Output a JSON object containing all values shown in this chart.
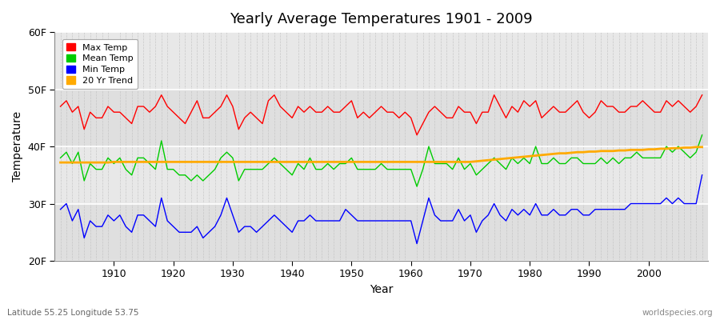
{
  "title": "Yearly Average Temperatures 1901 - 2009",
  "xlabel": "Year",
  "ylabel": "Temperature",
  "lat_label": "Latitude 55.25 Longitude 53.75",
  "source_label": "worldspecies.org",
  "start_year": 1901,
  "end_year": 2009,
  "ylim_min": 20,
  "ylim_max": 60,
  "yticks": [
    20,
    30,
    40,
    50,
    60
  ],
  "ytick_labels": [
    "20F",
    "30F",
    "40F",
    "50F",
    "60F"
  ],
  "xticks": [
    1910,
    1920,
    1930,
    1940,
    1950,
    1960,
    1970,
    1980,
    1990,
    2000
  ],
  "colors": {
    "max_temp": "#ff0000",
    "mean_temp": "#00cc00",
    "min_temp": "#0000ff",
    "trend": "#ffaa00",
    "fig_bg": "#ffffff",
    "plot_bg": "#e8e8e8",
    "band_light": "#e0e0e0",
    "band_dark": "#d0d0d0",
    "grid": "#ffffff"
  },
  "legend": [
    {
      "label": "Max Temp",
      "color": "#ff0000"
    },
    {
      "label": "Mean Temp",
      "color": "#00cc00"
    },
    {
      "label": "Min Temp",
      "color": "#0000ff"
    },
    {
      "label": "20 Yr Trend",
      "color": "#ffaa00"
    }
  ],
  "max_temp": [
    47,
    48,
    46,
    47,
    43,
    46,
    45,
    45,
    47,
    46,
    46,
    45,
    44,
    47,
    47,
    46,
    47,
    49,
    47,
    46,
    45,
    44,
    46,
    48,
    45,
    45,
    46,
    47,
    49,
    47,
    43,
    45,
    46,
    45,
    44,
    48,
    49,
    47,
    46,
    45,
    47,
    46,
    47,
    46,
    46,
    47,
    46,
    46,
    47,
    48,
    45,
    46,
    45,
    46,
    47,
    46,
    46,
    45,
    46,
    45,
    42,
    44,
    46,
    47,
    46,
    45,
    45,
    47,
    46,
    46,
    44,
    46,
    46,
    49,
    47,
    45,
    47,
    46,
    48,
    47,
    48,
    45,
    46,
    47,
    46,
    46,
    47,
    48,
    46,
    45,
    46,
    48,
    47,
    47,
    46,
    46,
    47,
    47,
    48,
    47,
    46,
    46,
    48,
    47,
    48,
    47,
    46,
    47,
    49
  ],
  "mean_temp": [
    38,
    39,
    37,
    39,
    34,
    37,
    36,
    36,
    38,
    37,
    38,
    36,
    35,
    38,
    38,
    37,
    36,
    41,
    36,
    36,
    35,
    35,
    34,
    35,
    34,
    35,
    36,
    38,
    39,
    38,
    34,
    36,
    36,
    36,
    36,
    37,
    38,
    37,
    36,
    35,
    37,
    36,
    38,
    36,
    36,
    37,
    36,
    37,
    37,
    38,
    36,
    36,
    36,
    36,
    37,
    36,
    36,
    36,
    36,
    36,
    33,
    36,
    40,
    37,
    37,
    37,
    36,
    38,
    36,
    37,
    35,
    36,
    37,
    38,
    37,
    36,
    38,
    37,
    38,
    37,
    40,
    37,
    37,
    38,
    37,
    37,
    38,
    38,
    37,
    37,
    37,
    38,
    37,
    38,
    37,
    38,
    38,
    39,
    38,
    38,
    38,
    38,
    40,
    39,
    40,
    39,
    38,
    39,
    42
  ],
  "min_temp": [
    29,
    30,
    27,
    29,
    24,
    27,
    26,
    26,
    28,
    27,
    28,
    26,
    25,
    28,
    28,
    27,
    26,
    31,
    27,
    26,
    25,
    25,
    25,
    26,
    24,
    25,
    26,
    28,
    31,
    28,
    25,
    26,
    26,
    25,
    26,
    27,
    28,
    27,
    26,
    25,
    27,
    27,
    28,
    27,
    27,
    27,
    27,
    27,
    29,
    28,
    27,
    27,
    27,
    27,
    27,
    27,
    27,
    27,
    27,
    27,
    23,
    27,
    31,
    28,
    27,
    27,
    27,
    29,
    27,
    28,
    25,
    27,
    28,
    30,
    28,
    27,
    29,
    28,
    29,
    28,
    30,
    28,
    28,
    29,
    28,
    28,
    29,
    29,
    28,
    28,
    29,
    29,
    29,
    29,
    29,
    29,
    30,
    30,
    30,
    30,
    30,
    30,
    31,
    30,
    31,
    30,
    30,
    30,
    35
  ],
  "trend": [
    37.2,
    37.2,
    37.2,
    37.2,
    37.2,
    37.2,
    37.2,
    37.2,
    37.2,
    37.3,
    37.3,
    37.3,
    37.3,
    37.3,
    37.3,
    37.3,
    37.3,
    37.3,
    37.3,
    37.3,
    37.3,
    37.3,
    37.3,
    37.3,
    37.3,
    37.3,
    37.3,
    37.3,
    37.3,
    37.3,
    37.3,
    37.3,
    37.3,
    37.3,
    37.3,
    37.3,
    37.3,
    37.3,
    37.3,
    37.3,
    37.3,
    37.3,
    37.3,
    37.3,
    37.3,
    37.3,
    37.3,
    37.3,
    37.3,
    37.3,
    37.3,
    37.3,
    37.3,
    37.3,
    37.3,
    37.3,
    37.3,
    37.3,
    37.3,
    37.3,
    37.3,
    37.3,
    37.3,
    37.3,
    37.3,
    37.3,
    37.3,
    37.3,
    37.3,
    37.3,
    37.4,
    37.5,
    37.6,
    37.7,
    37.8,
    37.9,
    38.0,
    38.1,
    38.2,
    38.3,
    38.4,
    38.5,
    38.6,
    38.7,
    38.8,
    38.8,
    38.9,
    39.0,
    39.0,
    39.1,
    39.1,
    39.2,
    39.2,
    39.2,
    39.3,
    39.3,
    39.4,
    39.4,
    39.4,
    39.5,
    39.5,
    39.6,
    39.6,
    39.7,
    39.7,
    39.8,
    39.8,
    39.9,
    39.9
  ]
}
